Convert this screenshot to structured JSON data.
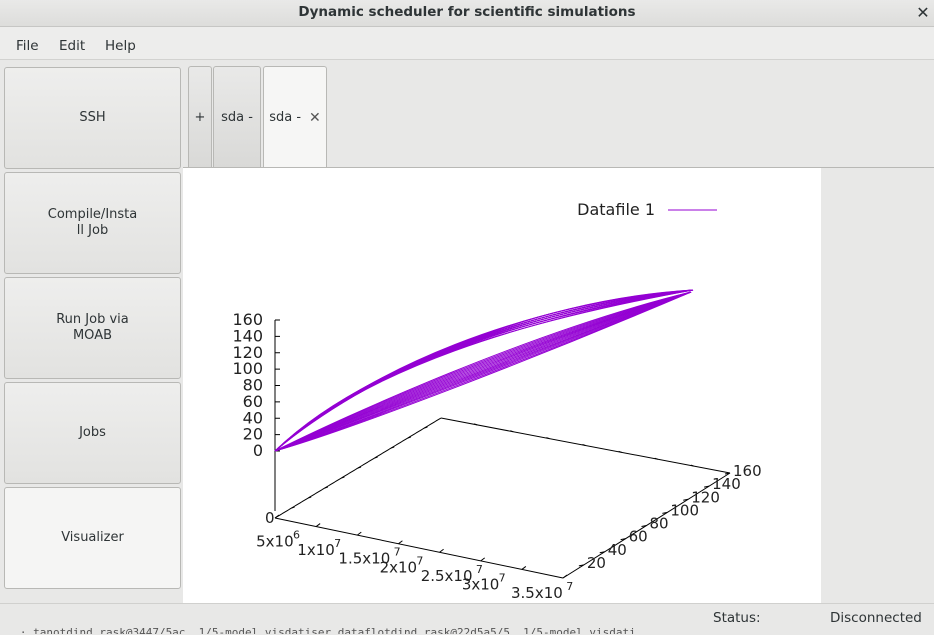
{
  "window": {
    "title": "Dynamic scheduler for scientific simulations",
    "close_glyph": "✕"
  },
  "menu": [
    {
      "label": "File"
    },
    {
      "label": "Edit"
    },
    {
      "label": "Help"
    }
  ],
  "sidebar": {
    "buttons": [
      {
        "label": "SSH"
      },
      {
        "label": "Compile/Insta\nll Job"
      },
      {
        "label": "Run Job via\nMOAB"
      },
      {
        "label": "Jobs"
      },
      {
        "label": "Visualizer",
        "active": true
      }
    ]
  },
  "tabs": {
    "add_label": "+",
    "items": [
      {
        "label": "sda -"
      },
      {
        "label": "sda -",
        "active": true,
        "close_glyph": "✕"
      }
    ]
  },
  "chart_data": {
    "type": "surface3d",
    "legend": [
      "Datafile 1"
    ],
    "series_color": "#9400d3",
    "z_ticks": [
      "0",
      "20",
      "40",
      "60",
      "80",
      "100",
      "120",
      "140",
      "160"
    ],
    "x_ticks": [
      "0",
      "5x10",
      "1x10",
      "1.5x10",
      "2x10",
      "2.5x10",
      "3x10",
      "3.5x10"
    ],
    "x_tick_exponents": [
      "",
      "6",
      "7",
      "7",
      "7",
      "7",
      "7",
      "7"
    ],
    "y_ticks": [
      "20",
      "40",
      "60",
      "80",
      "100",
      "120",
      "140",
      "160"
    ],
    "zlim": [
      0,
      160
    ],
    "xlim": [
      0,
      35000000
    ],
    "ylim": [
      0,
      160
    ],
    "grid": false,
    "legend_position": "top-right"
  },
  "status": {
    "label": "Status:",
    "value": "Disconnected"
  },
  "underlying_text": "  .. · tanotdind.rask@3447/5ac. 1/5-model.visdatiser.dataflotdind.rask@22d5a5/5. 1/5-model.visdati"
}
